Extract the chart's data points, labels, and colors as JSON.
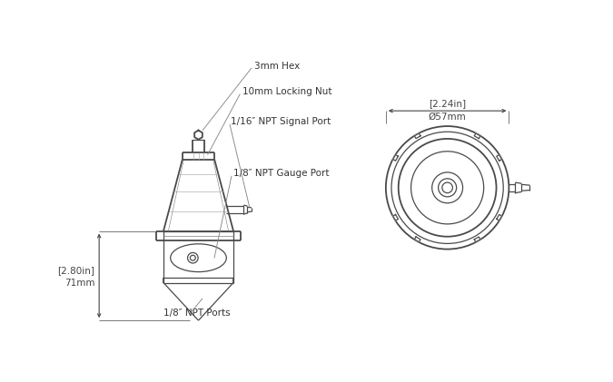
{
  "bg_color": "#ffffff",
  "line_color": "#4a4a4a",
  "dim_color": "#444444",
  "label_color": "#333333",
  "line_width": 0.9,
  "thick_line": 1.3,
  "labels": {
    "hex": "3mm Hex",
    "nut": "10mm Locking Nut",
    "signal": "1/16″ NPT Signal Port",
    "gauge": "1/8″ NPT Gauge Port",
    "ports": "1/8″ NPT Ports",
    "diameter_in": "[2.24in]",
    "diameter_mm": "Ø57mm",
    "height_in": "[2.80in]",
    "height_mm": "71mm"
  },
  "font_size": 7.5
}
